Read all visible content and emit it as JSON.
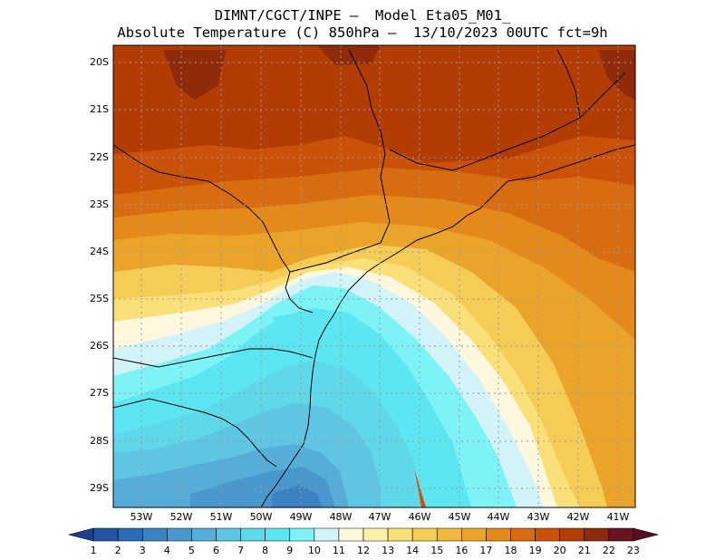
{
  "title": {
    "line1": "DIMNT/CGCT/INPE –  Model Eta05_M01_",
    "line2": "Absolute Temperature (C) 850hPa –  13/10/2023 00UTC fct=9h"
  },
  "map": {
    "lat_labels": [
      "20S",
      "21S",
      "22S",
      "23S",
      "24S",
      "25S",
      "26S",
      "27S",
      "28S",
      "29S"
    ],
    "lon_labels": [
      "53W",
      "52W",
      "51W",
      "50W",
      "49W",
      "48W",
      "47W",
      "46W",
      "45W",
      "44W",
      "43W",
      "42W",
      "41W"
    ]
  },
  "colorbar": {
    "labels": [
      "1",
      "2",
      "3",
      "4",
      "5",
      "6",
      "7",
      "8",
      "9",
      "10",
      "11",
      "12",
      "13",
      "14",
      "15",
      "16",
      "17",
      "18",
      "19",
      "20",
      "21",
      "22",
      "23"
    ],
    "colors": [
      "#1c3f8f",
      "#2154a4",
      "#2c6cb4",
      "#3a82c2",
      "#4898cd",
      "#56add8",
      "#5ec6e2",
      "#5fd8ea",
      "#5be6f2",
      "#7df3f8",
      "#d2f3f8",
      "#fff8de",
      "#fff0a8",
      "#fbe07a",
      "#f4cc56",
      "#efb93c",
      "#eba42a",
      "#e38a1a",
      "#d86c10",
      "#c95208",
      "#b13c04",
      "#8f2a0a",
      "#6b1420",
      "#5a0c24"
    ]
  }
}
